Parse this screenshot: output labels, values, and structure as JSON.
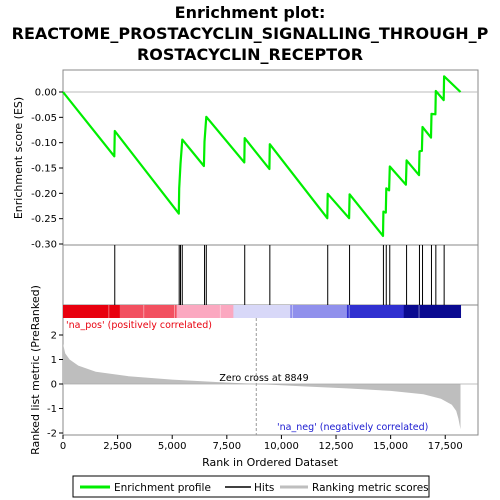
{
  "page": {
    "title_line1": "Enrichment plot:",
    "title_line2": "REACTOME_PROSTACYCLIN_SIGNALLING_THROUGH_P",
    "title_line3": "ROSTACYCLIN_RECEPTOR"
  },
  "chart_data": {
    "type": "line",
    "x_axis": {
      "label": "Rank in Ordered Dataset",
      "range": [
        0,
        19000
      ],
      "ticks": [
        0,
        2500,
        5000,
        7500,
        10000,
        12500,
        15000,
        17500
      ],
      "tick_labels": [
        "0",
        "2,500",
        "5,000",
        "7,500",
        "10,000",
        "12,500",
        "15,000",
        "17,500"
      ]
    },
    "es_panel": {
      "ylabel": "Enrichment score (ES)",
      "ylim": [
        -0.3,
        0.045
      ],
      "yticks": [
        0.0,
        -0.05,
        -0.1,
        -0.15,
        -0.2,
        -0.25,
        -0.3
      ],
      "ytick_labels": [
        "0.00",
        "-0.05",
        "-0.10",
        "-0.15",
        "-0.20",
        "-0.25",
        "-0.30"
      ],
      "grid": false,
      "line_color": "#00ee00",
      "series": [
        {
          "name": "Enrichment profile",
          "points": [
            [
              0,
              0.0
            ],
            [
              2350,
              -0.127
            ],
            [
              2370,
              -0.077
            ],
            [
              5300,
              -0.24
            ],
            [
              5320,
              -0.19
            ],
            [
              5380,
              -0.142
            ],
            [
              5460,
              -0.094
            ],
            [
              6450,
              -0.146
            ],
            [
              6480,
              -0.098
            ],
            [
              6560,
              -0.049
            ],
            [
              8300,
              -0.139
            ],
            [
              8320,
              -0.091
            ],
            [
              9450,
              -0.152
            ],
            [
              9470,
              -0.103
            ],
            [
              12100,
              -0.249
            ],
            [
              12120,
              -0.201
            ],
            [
              13100,
              -0.249
            ],
            [
              13120,
              -0.202
            ],
            [
              14650,
              -0.284
            ],
            [
              14670,
              -0.236
            ],
            [
              14780,
              -0.238
            ],
            [
              14800,
              -0.19
            ],
            [
              14930,
              -0.194
            ],
            [
              14960,
              -0.147
            ],
            [
              15700,
              -0.183
            ],
            [
              15730,
              -0.135
            ],
            [
              16300,
              -0.164
            ],
            [
              16320,
              -0.117
            ],
            [
              16430,
              -0.116
            ],
            [
              16460,
              -0.069
            ],
            [
              16850,
              -0.09
            ],
            [
              16870,
              -0.043
            ],
            [
              17050,
              -0.044
            ],
            [
              17070,
              0.002
            ],
            [
              17430,
              -0.016
            ],
            [
              17450,
              0.031
            ],
            [
              18200,
              0.0
            ]
          ]
        }
      ]
    },
    "hits": {
      "name": "Hits",
      "color": "#000000",
      "positions": [
        2370,
        5320,
        5380,
        5460,
        6480,
        6560,
        8320,
        9470,
        12120,
        13120,
        14670,
        14800,
        14960,
        15730,
        16320,
        16460,
        16870,
        17070,
        17450
      ]
    },
    "rank_bar": {
      "gradient": [
        "#e8000e",
        "#f25060",
        "#fba8c0",
        "#d8d8f8",
        "#9090ec",
        "#3030d0",
        "#0a0a90"
      ]
    },
    "metric_panel": {
      "ylabel": "Ranked list metric (PreRanked)",
      "ylim": [
        -2.1,
        3.1
      ],
      "yticks": [
        2,
        1,
        0,
        -1,
        -2
      ],
      "ytick_labels": [
        "2",
        "1",
        "0",
        "-1",
        "-2"
      ],
      "fill_color": "#bebebe",
      "series": [
        {
          "name": "Ranking metric scores",
          "points": [
            [
              0,
              1.65
            ],
            [
              100,
              1.25
            ],
            [
              300,
              1.0
            ],
            [
              700,
              0.75
            ],
            [
              1500,
              0.5
            ],
            [
              3000,
              0.32
            ],
            [
              5000,
              0.18
            ],
            [
              7000,
              0.08
            ],
            [
              8849,
              0.0
            ],
            [
              11000,
              -0.1
            ],
            [
              13000,
              -0.18
            ],
            [
              15000,
              -0.28
            ],
            [
              16500,
              -0.42
            ],
            [
              17300,
              -0.6
            ],
            [
              17800,
              -0.85
            ],
            [
              18000,
              -1.1
            ],
            [
              18100,
              -1.4
            ],
            [
              18200,
              -1.85
            ]
          ]
        }
      ],
      "zero_cross": 8849,
      "zero_cross_label": "Zero cross at 8849",
      "pos_label": "'na_pos' (positively correlated)",
      "neg_label": "'na_neg' (negatively correlated)",
      "pos_color": "#e8000e",
      "neg_color": "#1a1ad0"
    },
    "legend": {
      "entries": [
        {
          "name": "Enrichment profile",
          "color": "#00ee00"
        },
        {
          "name": "Hits",
          "color": "#000000"
        },
        {
          "name": "Ranking metric scores",
          "color": "#bebebe"
        }
      ]
    }
  }
}
